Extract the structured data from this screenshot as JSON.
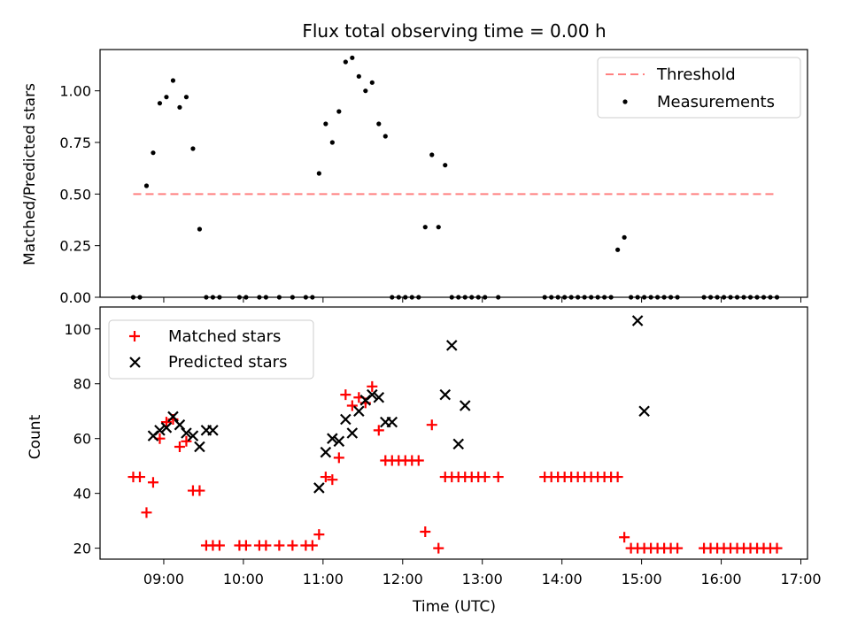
{
  "chart_data": [
    {
      "type": "scatter",
      "title": "Flux total observing time = 0.00 h",
      "xlabel": "",
      "ylabel": "Matched/Predicted stars",
      "xlim": [
        "08:12",
        "17:05"
      ],
      "ylim": [
        0,
        1.2
      ],
      "yticks": [
        "0.00",
        "0.25",
        "0.50",
        "0.75",
        "1.00"
      ],
      "ytick_values": [
        0,
        0.25,
        0.5,
        0.75,
        1.0
      ],
      "legend_position": "top-right",
      "threshold": {
        "name": "Threshold",
        "x": [
          "08:37",
          "16:40"
        ],
        "y": 0.5,
        "color": "#ff8080"
      },
      "series": [
        {
          "name": "Measurements",
          "color": "#000000",
          "marker": "dot",
          "x": [
            "08:37",
            "08:42",
            "08:47",
            "08:52",
            "08:57",
            "09:02",
            "09:07",
            "09:12",
            "09:17",
            "09:22",
            "09:27",
            "09:32",
            "09:37",
            "09:42",
            "09:57",
            "10:02",
            "10:12",
            "10:17",
            "10:27",
            "10:37",
            "10:47",
            "10:52",
            "10:57",
            "11:02",
            "11:07",
            "11:12",
            "11:17",
            "11:22",
            "11:27",
            "11:32",
            "11:37",
            "11:42",
            "11:47",
            "11:52",
            "11:57",
            "12:02",
            "12:07",
            "12:12",
            "12:17",
            "12:22",
            "12:27",
            "12:32",
            "12:37",
            "12:42",
            "12:47",
            "12:52",
            "12:57",
            "13:02",
            "13:12",
            "13:47",
            "13:52",
            "13:57",
            "14:02",
            "14:07",
            "14:12",
            "14:17",
            "14:22",
            "14:27",
            "14:32",
            "14:37",
            "14:42",
            "14:47",
            "14:52",
            "14:57",
            "15:02",
            "15:07",
            "15:12",
            "15:17",
            "15:22",
            "15:27",
            "15:47",
            "15:52",
            "15:57",
            "16:02",
            "16:07",
            "16:12",
            "16:17",
            "16:22",
            "16:27",
            "16:32",
            "16:37",
            "16:42"
          ],
          "y": [
            0,
            0,
            0.54,
            0.7,
            0.94,
            0.97,
            1.05,
            0.92,
            0.97,
            0.72,
            0.33,
            0,
            0,
            0,
            0,
            0,
            0,
            0,
            0,
            0,
            0,
            0,
            0.6,
            0.84,
            0.75,
            0.9,
            1.14,
            1.16,
            1.07,
            1.0,
            1.04,
            0.84,
            0.78,
            0,
            0,
            0,
            0,
            0,
            0.34,
            0.69,
            0.34,
            0.64,
            0,
            0,
            0,
            0,
            0,
            0,
            0,
            0,
            0,
            0,
            0,
            0,
            0,
            0,
            0,
            0,
            0,
            0,
            0.23,
            0.29,
            0,
            0,
            0,
            0,
            0,
            0,
            0,
            0,
            0,
            0,
            0,
            0,
            0,
            0,
            0,
            0,
            0,
            0,
            0,
            0
          ]
        }
      ]
    },
    {
      "type": "scatter",
      "title": "",
      "xlabel": "Time (UTC)",
      "ylabel": "Count",
      "xlim": [
        "08:12",
        "17:05"
      ],
      "ylim": [
        16,
        108
      ],
      "xticks": [
        "09:00",
        "10:00",
        "11:00",
        "12:00",
        "13:00",
        "14:00",
        "15:00",
        "16:00",
        "17:00"
      ],
      "yticks": [
        "20",
        "40",
        "60",
        "80",
        "100"
      ],
      "ytick_values": [
        20,
        40,
        60,
        80,
        100
      ],
      "legend_position": "top-left",
      "series": [
        {
          "name": "Matched stars",
          "color": "#ff0000",
          "marker": "plus",
          "x": [
            "08:37",
            "08:42",
            "08:47",
            "08:52",
            "08:57",
            "09:02",
            "09:07",
            "09:12",
            "09:17",
            "09:22",
            "09:27",
            "09:32",
            "09:37",
            "09:42",
            "09:57",
            "10:02",
            "10:12",
            "10:17",
            "10:27",
            "10:37",
            "10:47",
            "10:52",
            "10:57",
            "11:02",
            "11:07",
            "11:12",
            "11:17",
            "11:22",
            "11:27",
            "11:32",
            "11:37",
            "11:42",
            "11:47",
            "11:52",
            "11:57",
            "12:02",
            "12:07",
            "12:12",
            "12:17",
            "12:22",
            "12:27",
            "12:32",
            "12:37",
            "12:42",
            "12:47",
            "12:52",
            "12:57",
            "13:02",
            "13:12",
            "13:47",
            "13:52",
            "13:57",
            "14:02",
            "14:07",
            "14:12",
            "14:17",
            "14:22",
            "14:27",
            "14:32",
            "14:37",
            "14:42",
            "14:47",
            "14:52",
            "14:57",
            "15:02",
            "15:07",
            "15:12",
            "15:17",
            "15:22",
            "15:27",
            "15:47",
            "15:52",
            "15:57",
            "16:02",
            "16:07",
            "16:12",
            "16:17",
            "16:22",
            "16:27",
            "16:32",
            "16:37",
            "16:42"
          ],
          "y": [
            46,
            46,
            33,
            44,
            60,
            66,
            67,
            57,
            59,
            41,
            41,
            21,
            21,
            21,
            21,
            21,
            21,
            21,
            21,
            21,
            21,
            21,
            25,
            46,
            45,
            53,
            76,
            72,
            75,
            73,
            79,
            63,
            52,
            52,
            52,
            52,
            52,
            52,
            26,
            65,
            20,
            46,
            46,
            46,
            46,
            46,
            46,
            46,
            46,
            46,
            46,
            46,
            46,
            46,
            46,
            46,
            46,
            46,
            46,
            46,
            46,
            24,
            20,
            20,
            20,
            20,
            20,
            20,
            20,
            20,
            20,
            20,
            20,
            20,
            20,
            20,
            20,
            20,
            20,
            20,
            20,
            20
          ]
        },
        {
          "name": "Predicted stars",
          "color": "#000000",
          "marker": "x",
          "x": [
            "08:52",
            "08:57",
            "09:02",
            "09:07",
            "09:12",
            "09:17",
            "09:22",
            "09:27",
            "09:32",
            "09:37",
            "10:57",
            "11:02",
            "11:07",
            "11:12",
            "11:17",
            "11:22",
            "11:27",
            "11:32",
            "11:37",
            "11:42",
            "11:47",
            "11:52",
            "12:32",
            "12:37",
            "12:42",
            "12:47",
            "14:57",
            "15:02"
          ],
          "y": [
            61,
            63,
            64,
            68,
            65,
            62,
            61,
            57,
            63,
            63,
            42,
            55,
            60,
            59,
            67,
            62,
            70,
            74,
            76,
            75,
            66,
            66,
            76,
            94,
            58,
            72,
            103,
            70
          ]
        }
      ]
    }
  ]
}
